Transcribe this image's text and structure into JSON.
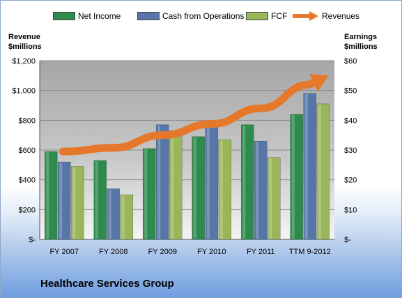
{
  "chart_data": {
    "type": "bar",
    "company": "Healthcare Services Group",
    "categories": [
      "FY 2007",
      "FY 2008",
      "FY 2009",
      "FY 2010",
      "FY 2011",
      "TTM 9-2012"
    ],
    "left_axis": {
      "title_line1": "Revenue",
      "title_line2": "$millions",
      "ylim": [
        0,
        1200
      ],
      "ticks": [
        0,
        200,
        400,
        600,
        800,
        1000,
        1200
      ],
      "tick_labels": [
        "$-",
        "$200",
        "$400",
        "$600",
        "$800",
        "$1,000",
        "$1,200"
      ]
    },
    "right_axis": {
      "title_line1": "Earnings",
      "title_line2": "$millions",
      "ylim": [
        0,
        60
      ],
      "ticks": [
        0,
        10,
        20,
        30,
        40,
        50,
        60
      ],
      "tick_labels": [
        "$-",
        "$10",
        "$20",
        "$30",
        "$40",
        "$50",
        "$60"
      ]
    },
    "series": [
      {
        "name": "Net Income",
        "axis": "right",
        "kind": "bar",
        "color": "#2e8b4e",
        "values": [
          29.5,
          26.5,
          30.5,
          34.5,
          38.5,
          42
        ]
      },
      {
        "name": "Cash from Operations",
        "axis": "right",
        "kind": "bar",
        "color": "#5676a8",
        "values": [
          26,
          17,
          38.5,
          38,
          33,
          49
        ]
      },
      {
        "name": "FCF",
        "axis": "right",
        "kind": "bar",
        "color": "#9ab65a",
        "values": [
          24.5,
          15,
          36.5,
          33.5,
          27.5,
          45.5
        ]
      },
      {
        "name": "Revenues",
        "axis": "left",
        "kind": "arrow",
        "color": "#e5782b",
        "values": [
          590,
          615,
          700,
          775,
          880,
          1040
        ]
      }
    ],
    "grid": true,
    "legend_position": "top"
  }
}
